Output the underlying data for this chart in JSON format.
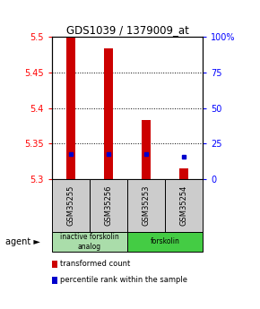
{
  "title": "GDS1039 / 1379009_at",
  "samples": [
    "GSM35255",
    "GSM35256",
    "GSM35253",
    "GSM35254"
  ],
  "bar_bottoms": [
    5.3,
    5.3,
    5.3,
    5.3
  ],
  "bar_tops": [
    5.5,
    5.484,
    5.383,
    5.315
  ],
  "percentile_values": [
    5.336,
    5.336,
    5.336,
    5.332
  ],
  "ylim_left": [
    5.3,
    5.5
  ],
  "ylim_right": [
    0,
    100
  ],
  "yticks_left": [
    5.3,
    5.35,
    5.4,
    5.45,
    5.5
  ],
  "yticks_right": [
    0,
    25,
    50,
    75,
    100
  ],
  "ytick_labels_right": [
    "0",
    "25",
    "50",
    "75",
    "100%"
  ],
  "bar_color": "#cc0000",
  "percentile_color": "#0000cc",
  "agent_groups": [
    {
      "label": "inactive forskolin\nanalog",
      "cols": [
        0,
        1
      ],
      "color": "#aaddaa"
    },
    {
      "label": "forskolin",
      "cols": [
        2,
        3
      ],
      "color": "#44cc44"
    }
  ],
  "legend_items": [
    {
      "color": "#cc0000",
      "label": "transformed count"
    },
    {
      "color": "#0000cc",
      "label": "percentile rank within the sample"
    }
  ],
  "sample_box_color": "#cccccc",
  "bar_width": 0.25
}
